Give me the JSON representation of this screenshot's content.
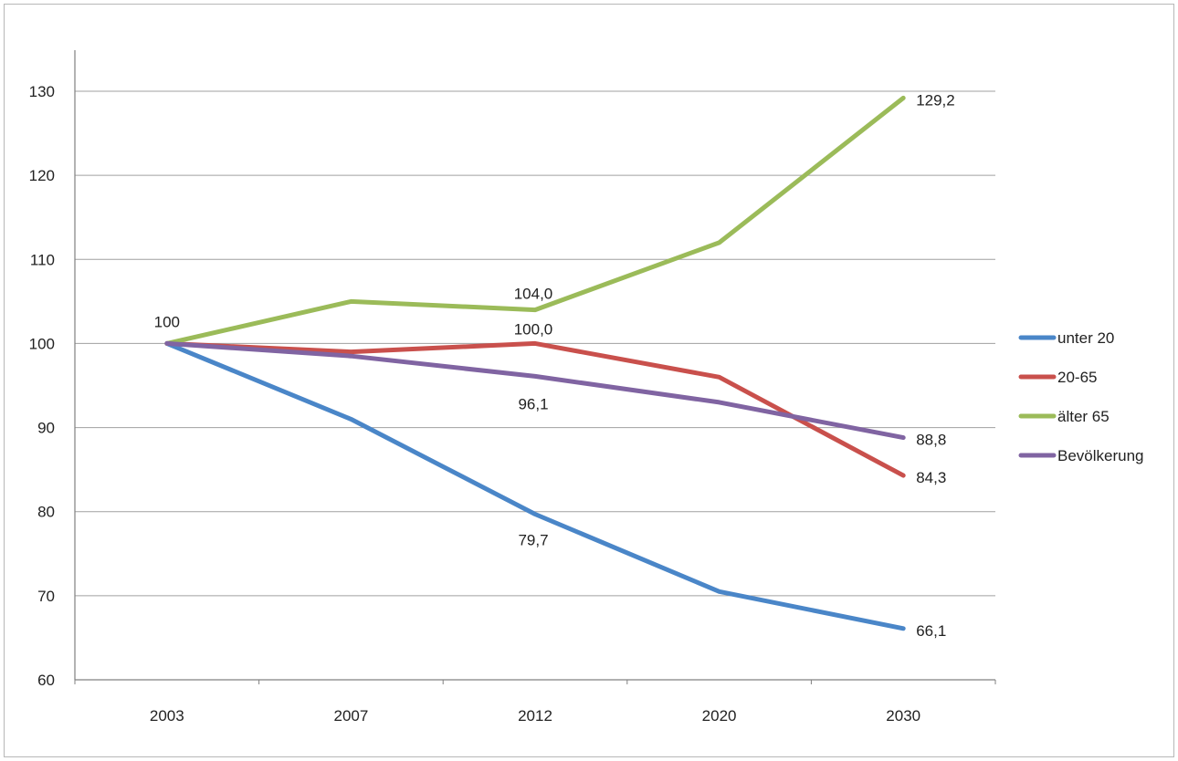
{
  "chart_data": {
    "type": "line",
    "title": "",
    "xlabel": "",
    "ylabel": "",
    "categories": [
      "2003",
      "2007",
      "2012",
      "2020",
      "2030"
    ],
    "ylim": [
      60,
      130
    ],
    "y_ticks": [
      "60",
      "70",
      "80",
      "90",
      "100",
      "110",
      "120",
      "130"
    ],
    "grid": true,
    "legend_position": "right",
    "series": [
      {
        "name": "unter 20",
        "color": "#4a86c8",
        "values": [
          100,
          91.0,
          79.7,
          70.5,
          66.1
        ]
      },
      {
        "name": "20-65",
        "color": "#c9504c",
        "values": [
          100,
          99.0,
          100.0,
          96.0,
          84.3
        ]
      },
      {
        "name": "älter 65",
        "color": "#9bbb59",
        "values": [
          100,
          105.0,
          104.0,
          112.0,
          129.2
        ]
      },
      {
        "name": "Bevölkerung",
        "color": "#8064a2",
        "values": [
          100,
          98.5,
          96.1,
          93.0,
          88.8
        ]
      }
    ],
    "annotations": [
      {
        "text": "100",
        "series": 0,
        "point": 0
      },
      {
        "text": "104,0",
        "series": 2,
        "point": 2
      },
      {
        "text": "100,0",
        "series": 1,
        "point": 2
      },
      {
        "text": "96,1",
        "series": 3,
        "point": 2
      },
      {
        "text": "79,7",
        "series": 0,
        "point": 2
      },
      {
        "text": "129,2",
        "series": 2,
        "point": 4
      },
      {
        "text": "88,8",
        "series": 3,
        "point": 4
      },
      {
        "text": "84,3",
        "series": 1,
        "point": 4
      },
      {
        "text": "66,1",
        "series": 0,
        "point": 4
      }
    ]
  }
}
